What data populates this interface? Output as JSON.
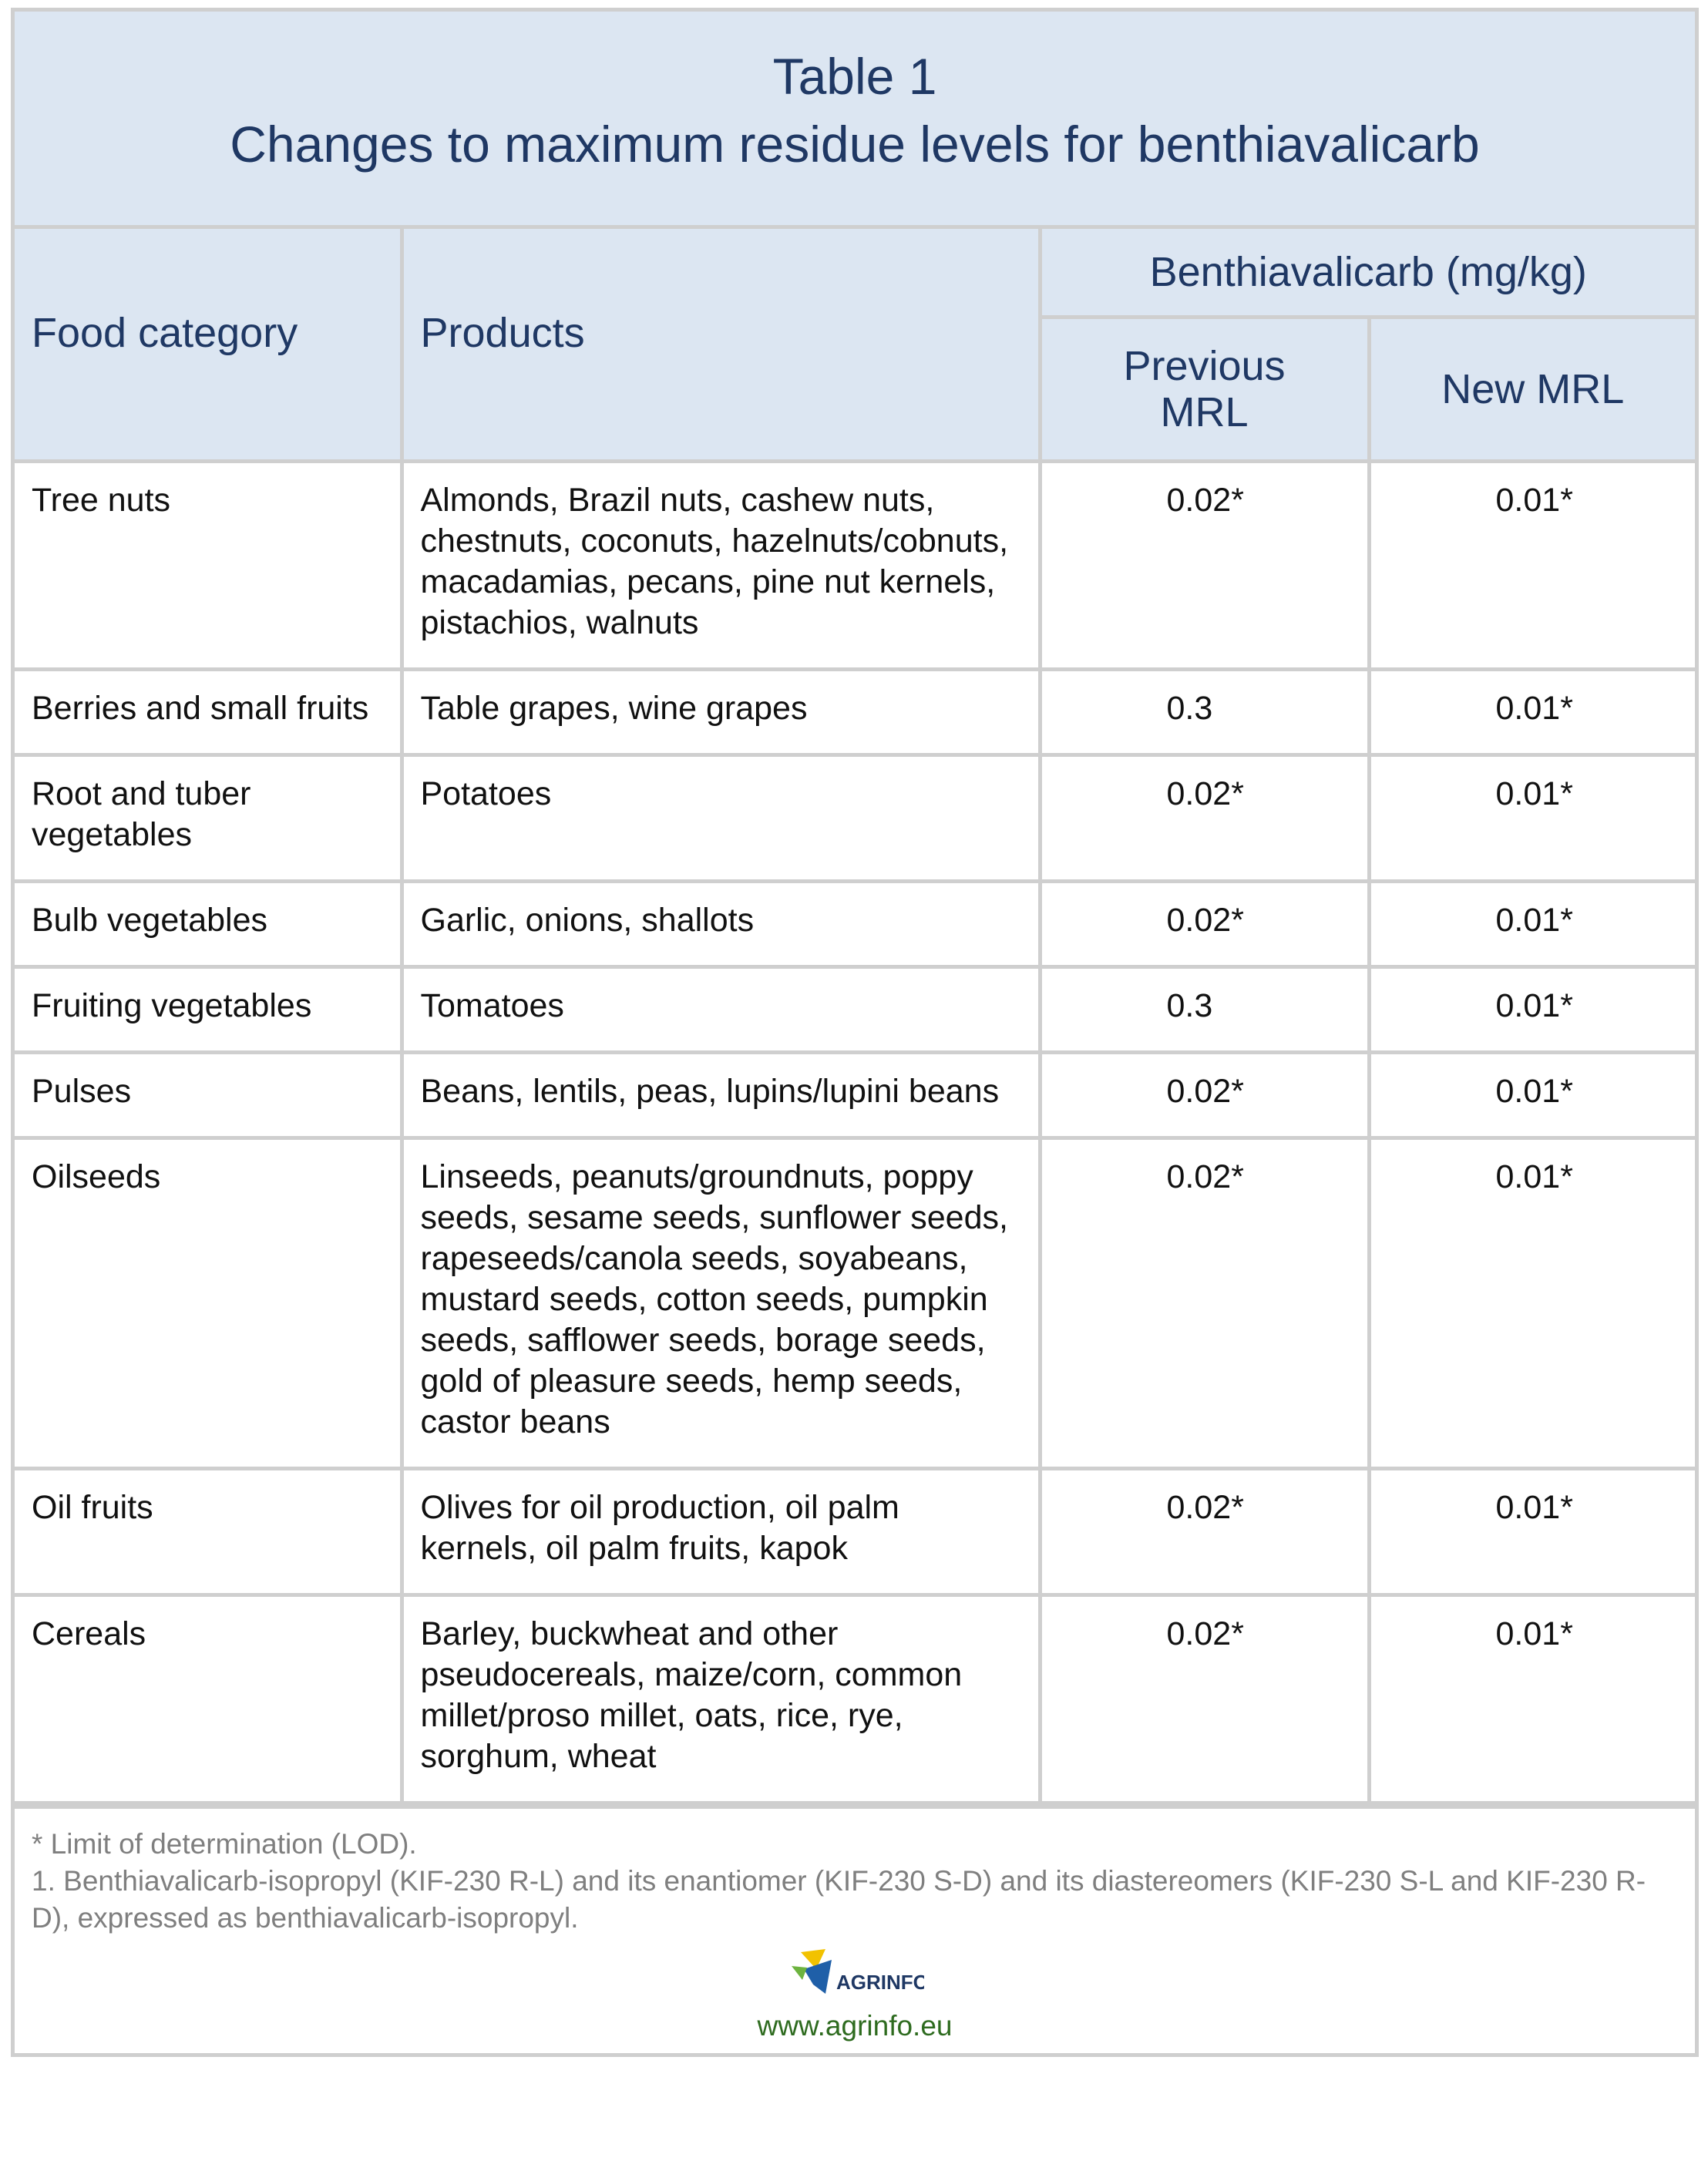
{
  "header": {
    "title": [
      "Table 1",
      "Changes to maximum residue levels for benthiavalicarb"
    ]
  },
  "table": {
    "columns": {
      "category": "Food category",
      "products": "Products",
      "group": "Benthiavalicarb (mg/kg)",
      "previous": "Previous MRL",
      "new": "New MRL"
    },
    "rows": [
      [
        "Tree nuts",
        "Almonds, Brazil nuts, cashew nuts, chestnuts, coconuts, hazelnuts/cobnuts, macadamias, pecans, pine nut kernels, pistachios, walnuts",
        "0.02*",
        "0.01*"
      ],
      [
        "Berries and small fruits",
        "Table grapes, wine grapes",
        "0.3",
        "0.01*"
      ],
      [
        "Root and tuber vegetables",
        "Potatoes",
        "0.02*",
        "0.01*"
      ],
      [
        "Bulb vegetables",
        "Garlic, onions, shallots",
        "0.02*",
        "0.01*"
      ],
      [
        "Fruiting vegetables",
        "Tomatoes",
        "0.3",
        "0.01*"
      ],
      [
        "Pulses",
        "Beans, lentils, peas, lupins/lupini beans",
        "0.02*",
        "0.01*"
      ],
      [
        "Oilseeds",
        "Linseeds, peanuts/groundnuts, poppy seeds, sesame seeds, sunflower seeds, rapeseeds/canola seeds, soyabeans, mustard seeds, cotton seeds, pumpkin seeds, safflower seeds, borage seeds, gold of pleasure seeds, hemp seeds, castor beans",
        "0.02*",
        "0.01*"
      ],
      [
        "Oil fruits",
        "Olives for oil production, oil palm kernels, oil palm fruits, kapok",
        "0.02*",
        "0.01*"
      ],
      [
        "Cereals",
        "Barley, buckwheat and other pseudocereals, maize/corn, common millet/proso millet, oats, rice, rye, sorghum, wheat",
        "0.02*",
        "0.01*"
      ]
    ]
  },
  "footnotes": [
    "* Limit of determination (LOD).",
    "1. Benthiavalicarb-isopropyl (KIF-230 R-L) and its enantiomer (KIF-230 S-D) and its diastereomers (KIF-230 S-L and KIF-230 R-D), expressed as benthiavalicarb-isopropyl."
  ],
  "footer": {
    "logo_text": "AGRINFO",
    "url": "www.agrinfo.eu"
  }
}
